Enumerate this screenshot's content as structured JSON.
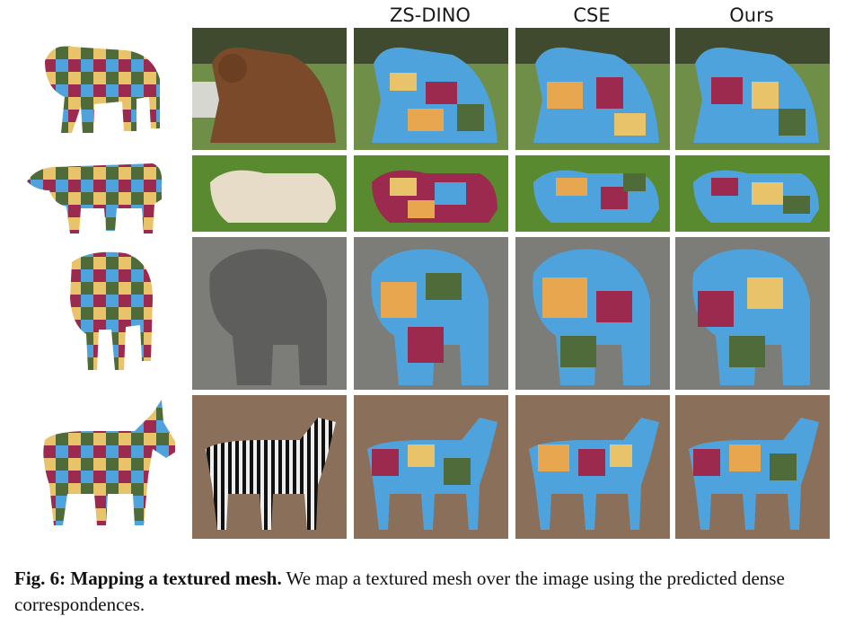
{
  "figure": {
    "columns": [
      "ZS-DINO",
      "CSE",
      "Ours"
    ],
    "rows": [
      {
        "animal": "bear"
      },
      {
        "animal": "cow"
      },
      {
        "animal": "elephant"
      },
      {
        "animal": "zebra"
      }
    ],
    "palette": {
      "red": "#9c2a4e",
      "blue": "#4fa3dc",
      "yellow": "#e9c36a",
      "green": "#4f6b3a",
      "orange": "#e8a64e"
    },
    "caption": {
      "label": "Fig. 6:",
      "title": "Mapping a textured mesh.",
      "text": "We map a textured mesh over the image using the predicted dense correspondences."
    }
  }
}
